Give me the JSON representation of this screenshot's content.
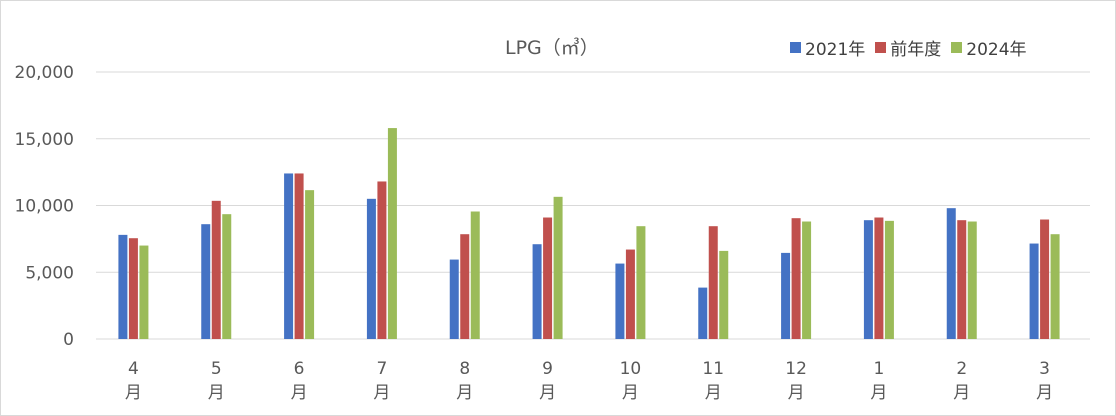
{
  "chart_data": {
    "type": "bar",
    "title": "LPG（㎥）",
    "categories": [
      "4\n月",
      "5\n月",
      "6\n月",
      "7\n月",
      "8\n月",
      "9\n月",
      "10\n月",
      "11\n月",
      "12\n月",
      "1\n月",
      "2\n月",
      "3\n月"
    ],
    "series": [
      {
        "name": "2021年",
        "color": "#4472C4",
        "values": [
          7800,
          8600,
          12400,
          10500,
          5950,
          7100,
          5650,
          3850,
          6450,
          8900,
          9800,
          7150
        ]
      },
      {
        "name": "前年度",
        "color": "#C0504D",
        "values": [
          7550,
          10350,
          12400,
          11800,
          7850,
          9100,
          6700,
          8450,
          9050,
          9100,
          8900,
          8950
        ]
      },
      {
        "name": "2024年",
        "color": "#9BBB59",
        "values": [
          7000,
          9350,
          11150,
          15800,
          9550,
          10650,
          8450,
          6600,
          8800,
          8850,
          8800,
          7850
        ]
      }
    ],
    "ylim": [
      0,
      20000
    ],
    "yticks": [
      "0",
      "5,000",
      "10,000",
      "15,000",
      "20,000"
    ],
    "grid": true,
    "legend_position": "top-right"
  }
}
